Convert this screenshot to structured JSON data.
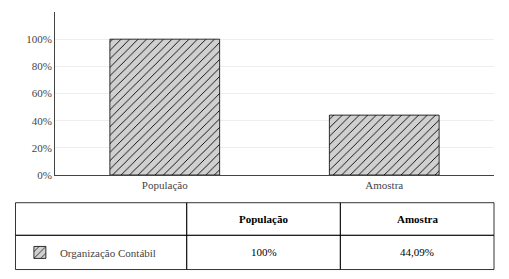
{
  "chart_data": {
    "type": "bar",
    "categories": [
      "População",
      "Amostra"
    ],
    "series": [
      {
        "name": "Organização Contábil",
        "color": "#d0d0d0",
        "values": [
          100.0,
          44.09
        ],
        "value_labels": [
          "100%",
          "44,09%"
        ]
      }
    ],
    "ylim": [
      0,
      120
    ],
    "yticks": [
      {
        "value": 0,
        "label": "0%"
      },
      {
        "value": 20,
        "label": "20%"
      },
      {
        "value": 40,
        "label": "40%"
      },
      {
        "value": 60,
        "label": "60%"
      },
      {
        "value": 80,
        "label": "80%"
      },
      {
        "value": 100,
        "label": "100%"
      }
    ],
    "grid": true,
    "legend": "bottom left"
  }
}
